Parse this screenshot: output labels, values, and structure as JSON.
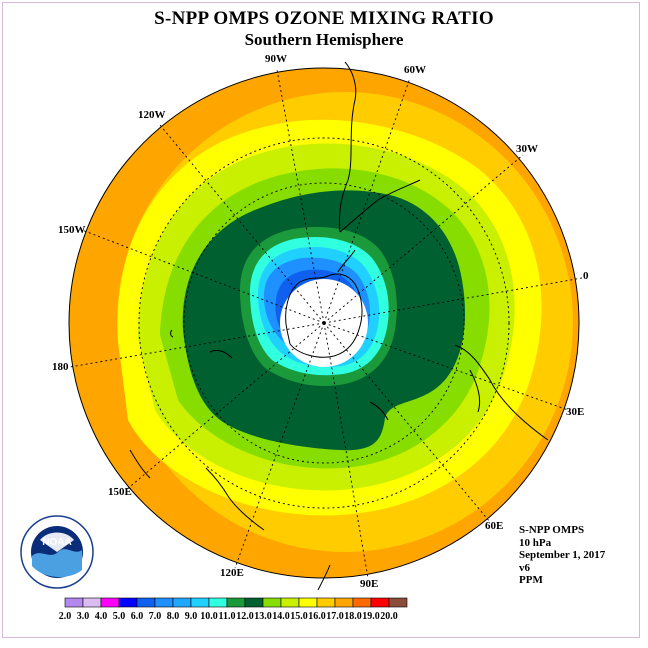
{
  "title": "S-NPP OMPS OZONE MIXING RATIO",
  "subtitle": "Southern Hemisphere",
  "info": {
    "instrument": "S-NPP OMPS",
    "level": "10 hPa",
    "date": "September 1, 2017",
    "version": "v6",
    "units": "PPM"
  },
  "longitude_labels": [
    "90W",
    "60W",
    "30W",
    "0",
    "30E",
    "60E",
    "90E",
    "120E",
    "150E",
    "180",
    "150W",
    "120W"
  ],
  "colorbar": {
    "labels": [
      "2.0",
      "3.0",
      "4.0",
      "5.0",
      "6.0",
      "7.0",
      "8.0",
      "9.0",
      "10.0",
      "11.0",
      "12.0",
      "13.0",
      "14.0",
      "15.0",
      "16.0",
      "17.0",
      "18.0",
      "19.0",
      "20.0"
    ],
    "colors": [
      "#b388ee",
      "#dcbcf0",
      "#ff00ff",
      "#0000ff",
      "#1060f0",
      "#1e90ff",
      "#20a8ff",
      "#20d0ff",
      "#30ffe0",
      "#1a9a3a",
      "#006030",
      "#88dd00",
      "#c8f000",
      "#ffff00",
      "#ffcc00",
      "#ffa500",
      "#ff6a00",
      "#ff0000",
      "#8b4c39"
    ]
  },
  "logo": {
    "name": "NOAA"
  }
}
